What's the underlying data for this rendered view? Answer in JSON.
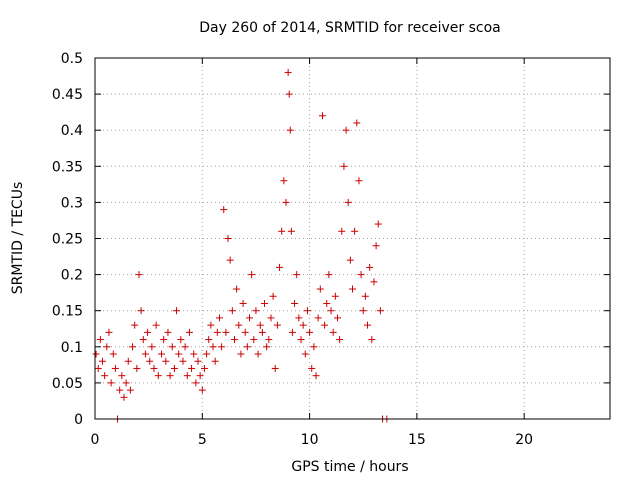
{
  "chart_data": {
    "type": "scatter",
    "title": "Day 260 of 2014, SRMTID for receiver scoa",
    "xlabel": "GPS time / hours",
    "ylabel": "SRMTID / TECUs",
    "xlim": [
      0,
      24
    ],
    "ylim": [
      0,
      0.5
    ],
    "xticks": [
      0,
      5,
      10,
      15,
      20
    ],
    "yticks": [
      0,
      0.05,
      0.1,
      0.15,
      0.2,
      0.25,
      0.3,
      0.35,
      0.4,
      0.45,
      0.5
    ],
    "grid": true,
    "marker": "+",
    "color": "#cc0000",
    "series": [
      {
        "name": "SRMTID",
        "points": [
          [
            0.05,
            0.09
          ],
          [
            0.15,
            0.07
          ],
          [
            0.25,
            0.11
          ],
          [
            0.35,
            0.08
          ],
          [
            0.45,
            0.06
          ],
          [
            0.55,
            0.1
          ],
          [
            0.65,
            0.12
          ],
          [
            0.75,
            0.05
          ],
          [
            0.85,
            0.09
          ],
          [
            0.95,
            0.07
          ],
          [
            1.05,
            0.0
          ],
          [
            1.15,
            0.04
          ],
          [
            1.25,
            0.06
          ],
          [
            1.35,
            0.03
          ],
          [
            1.45,
            0.05
          ],
          [
            1.55,
            0.08
          ],
          [
            1.65,
            0.04
          ],
          [
            1.75,
            0.1
          ],
          [
            1.85,
            0.13
          ],
          [
            1.95,
            0.07
          ],
          [
            2.05,
            0.2
          ],
          [
            2.15,
            0.15
          ],
          [
            2.25,
            0.11
          ],
          [
            2.35,
            0.09
          ],
          [
            2.45,
            0.12
          ],
          [
            2.55,
            0.08
          ],
          [
            2.65,
            0.1
          ],
          [
            2.75,
            0.07
          ],
          [
            2.85,
            0.13
          ],
          [
            2.95,
            0.06
          ],
          [
            3.1,
            0.09
          ],
          [
            3.2,
            0.11
          ],
          [
            3.3,
            0.08
          ],
          [
            3.4,
            0.12
          ],
          [
            3.5,
            0.06
          ],
          [
            3.6,
            0.1
          ],
          [
            3.7,
            0.07
          ],
          [
            3.8,
            0.15
          ],
          [
            3.9,
            0.09
          ],
          [
            4.0,
            0.11
          ],
          [
            4.1,
            0.08
          ],
          [
            4.2,
            0.1
          ],
          [
            4.3,
            0.06
          ],
          [
            4.4,
            0.12
          ],
          [
            4.5,
            0.07
          ],
          [
            4.6,
            0.09
          ],
          [
            4.7,
            0.05
          ],
          [
            4.8,
            0.08
          ],
          [
            4.9,
            0.06
          ],
          [
            5.0,
            0.04
          ],
          [
            5.1,
            0.07
          ],
          [
            5.2,
            0.09
          ],
          [
            5.3,
            0.11
          ],
          [
            5.4,
            0.13
          ],
          [
            5.5,
            0.1
          ],
          [
            5.6,
            0.08
          ],
          [
            5.7,
            0.12
          ],
          [
            5.8,
            0.14
          ],
          [
            5.9,
            0.1
          ],
          [
            6.0,
            0.29
          ],
          [
            6.1,
            0.12
          ],
          [
            6.2,
            0.25
          ],
          [
            6.3,
            0.22
          ],
          [
            6.4,
            0.15
          ],
          [
            6.5,
            0.11
          ],
          [
            6.6,
            0.18
          ],
          [
            6.7,
            0.13
          ],
          [
            6.8,
            0.09
          ],
          [
            6.9,
            0.16
          ],
          [
            7.0,
            0.12
          ],
          [
            7.1,
            0.1
          ],
          [
            7.2,
            0.14
          ],
          [
            7.3,
            0.2
          ],
          [
            7.4,
            0.11
          ],
          [
            7.5,
            0.15
          ],
          [
            7.6,
            0.09
          ],
          [
            7.7,
            0.13
          ],
          [
            7.8,
            0.12
          ],
          [
            7.9,
            0.16
          ],
          [
            8.0,
            0.1
          ],
          [
            8.1,
            0.11
          ],
          [
            8.2,
            0.14
          ],
          [
            8.3,
            0.17
          ],
          [
            8.4,
            0.07
          ],
          [
            8.5,
            0.13
          ],
          [
            8.6,
            0.21
          ],
          [
            8.7,
            0.26
          ],
          [
            8.8,
            0.33
          ],
          [
            8.9,
            0.3
          ],
          [
            9.0,
            0.48
          ],
          [
            9.05,
            0.45
          ],
          [
            9.1,
            0.4
          ],
          [
            9.15,
            0.26
          ],
          [
            9.2,
            0.12
          ],
          [
            9.3,
            0.16
          ],
          [
            9.4,
            0.2
          ],
          [
            9.5,
            0.14
          ],
          [
            9.6,
            0.11
          ],
          [
            9.7,
            0.13
          ],
          [
            9.8,
            0.09
          ],
          [
            9.9,
            0.15
          ],
          [
            10.0,
            0.12
          ],
          [
            10.1,
            0.07
          ],
          [
            10.2,
            0.1
          ],
          [
            10.3,
            0.06
          ],
          [
            10.4,
            0.14
          ],
          [
            10.5,
            0.18
          ],
          [
            10.6,
            0.42
          ],
          [
            10.7,
            0.13
          ],
          [
            10.8,
            0.16
          ],
          [
            10.9,
            0.2
          ],
          [
            11.0,
            0.15
          ],
          [
            11.1,
            0.12
          ],
          [
            11.2,
            0.17
          ],
          [
            11.3,
            0.14
          ],
          [
            11.4,
            0.11
          ],
          [
            11.5,
            0.26
          ],
          [
            11.6,
            0.35
          ],
          [
            11.7,
            0.4
          ],
          [
            11.8,
            0.3
          ],
          [
            11.9,
            0.22
          ],
          [
            12.0,
            0.18
          ],
          [
            12.1,
            0.26
          ],
          [
            12.2,
            0.41
          ],
          [
            12.3,
            0.33
          ],
          [
            12.4,
            0.2
          ],
          [
            12.5,
            0.15
          ],
          [
            12.6,
            0.17
          ],
          [
            12.7,
            0.13
          ],
          [
            12.8,
            0.21
          ],
          [
            12.9,
            0.11
          ],
          [
            13.0,
            0.19
          ],
          [
            13.1,
            0.24
          ],
          [
            13.2,
            0.27
          ],
          [
            13.3,
            0.15
          ],
          [
            13.4,
            0.0
          ],
          [
            13.6,
            0.0
          ]
        ]
      }
    ]
  }
}
